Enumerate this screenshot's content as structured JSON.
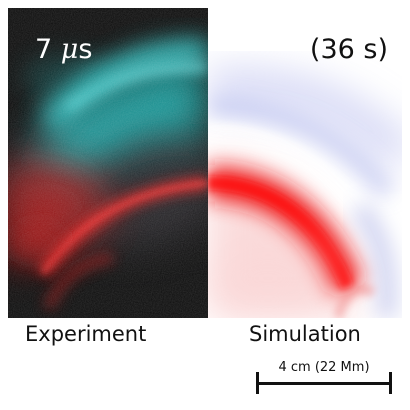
{
  "experiment": {
    "time_prefix": "7 ",
    "time_unit_mu": "μ",
    "time_unit_s": "s",
    "caption": "Experiment"
  },
  "simulation": {
    "time": "(36 s)",
    "caption": "Simulation"
  },
  "scale_bar": {
    "label": "4 cm (22 Mm)"
  },
  "colors": {
    "cyan_glow": "#22d8d8",
    "red_glow": "#e01818",
    "sim_red": "#ee1111",
    "sim_blue": "#9aa0e0",
    "background_dark": "#0c0c0c"
  }
}
